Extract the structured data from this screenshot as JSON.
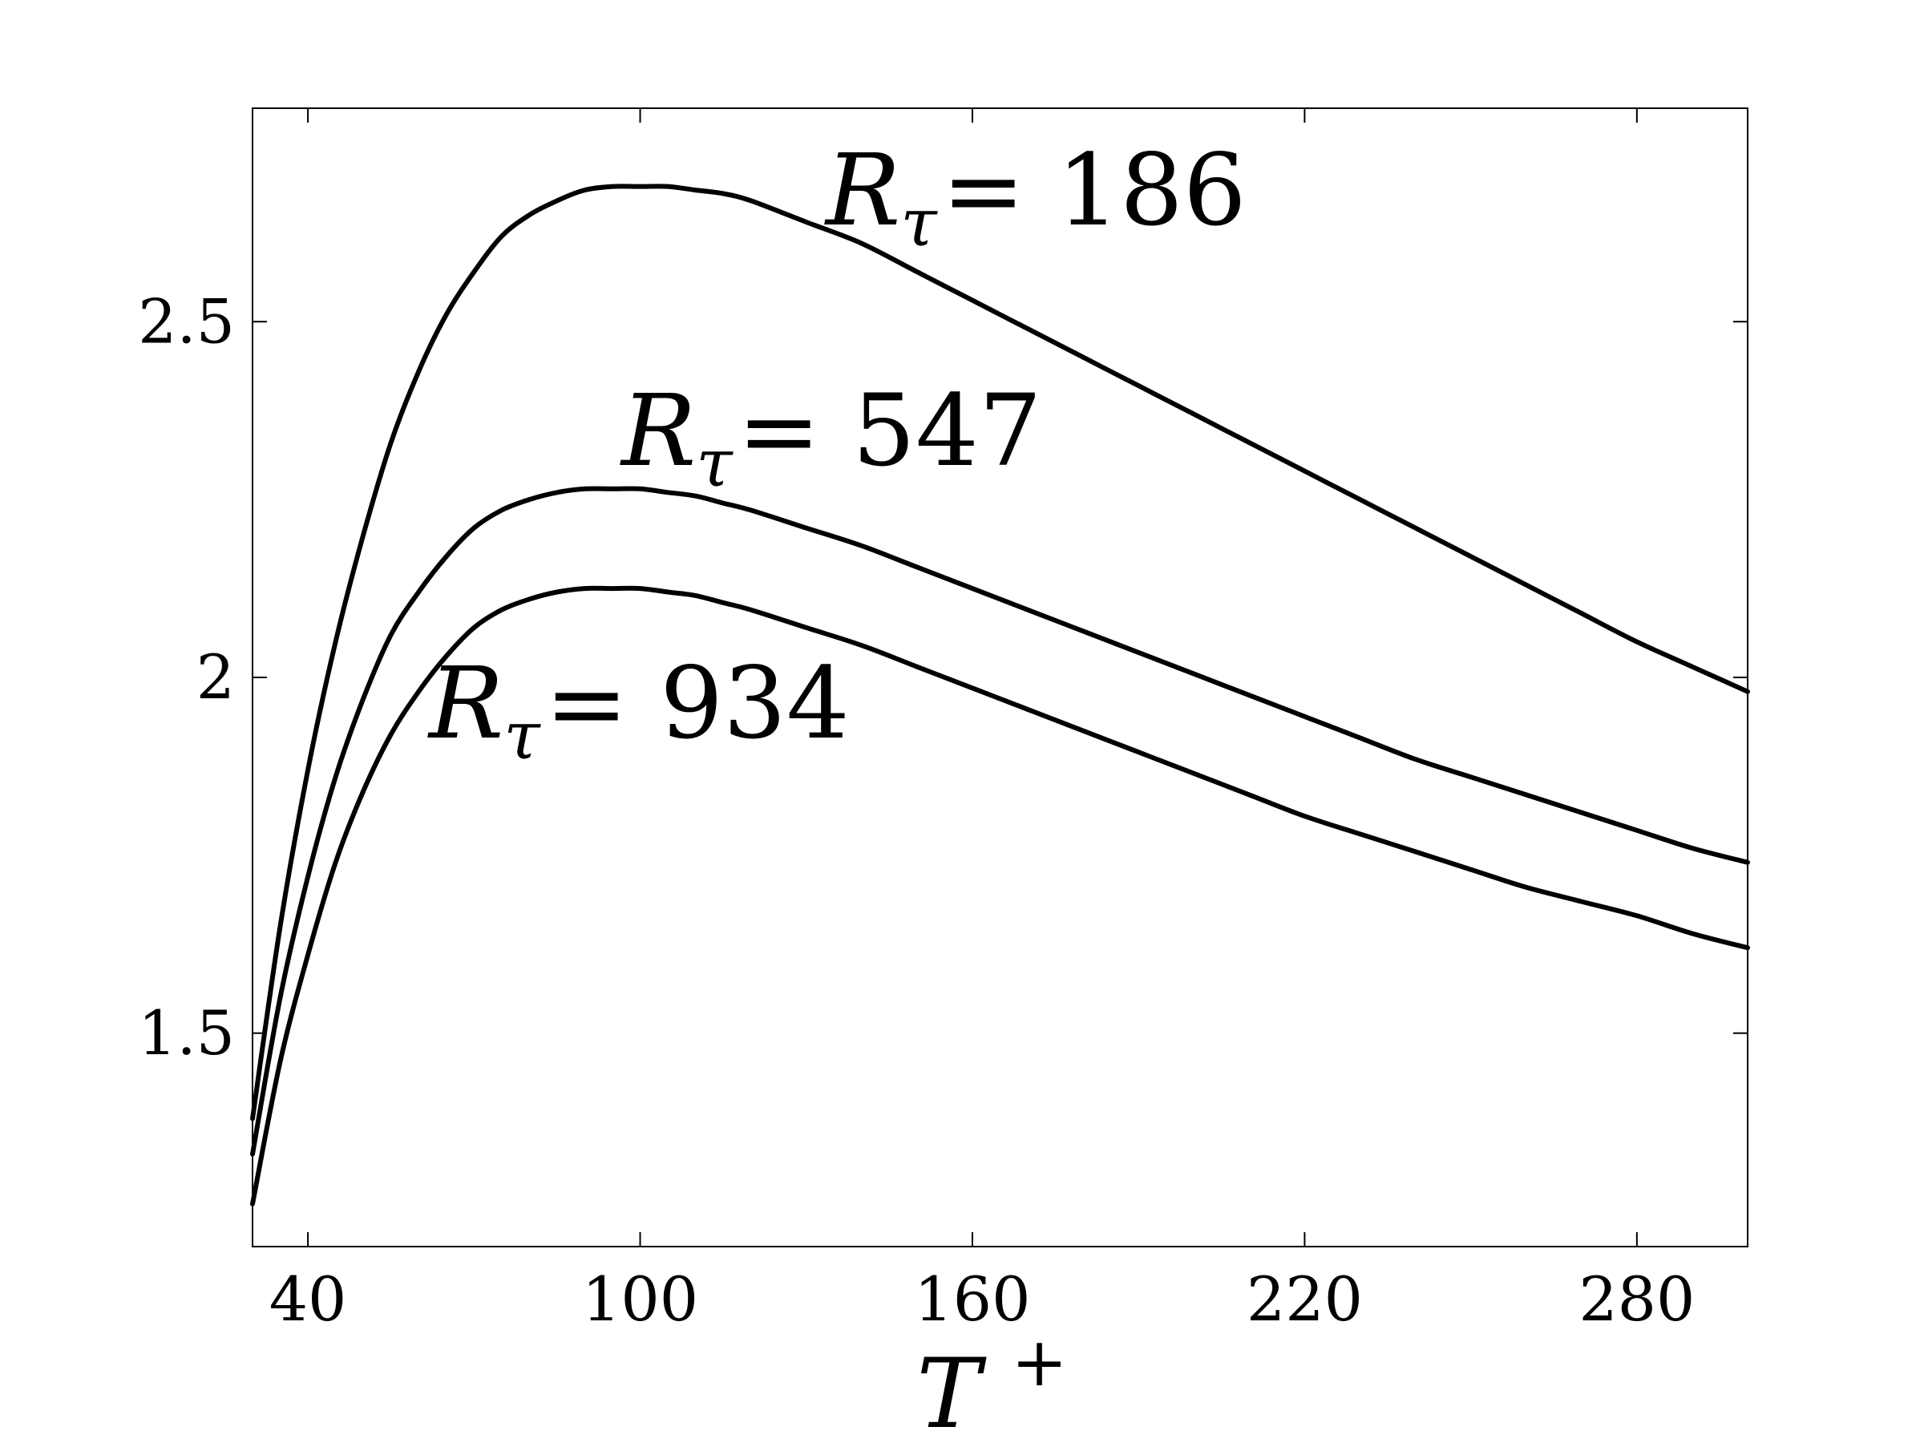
{
  "chart_data": {
    "type": "line",
    "xlabel_base": "T",
    "xlabel_sup": "+",
    "ylabel": "",
    "xlim": [
      30,
      300
    ],
    "ylim": [
      1.2,
      2.8
    ],
    "xticks": [
      40,
      100,
      160,
      220,
      280
    ],
    "xtick_labels": [
      "40",
      "100",
      "160",
      "220",
      "280"
    ],
    "yticks": [
      1.5,
      2.0,
      2.5
    ],
    "ytick_labels": [
      "1.5",
      "2",
      "2.5"
    ],
    "grid": false,
    "series": [
      {
        "name_prefix": "R",
        "name_sub": "τ",
        "name_rest": "= 186",
        "x": [
          30,
          35,
          40,
          45,
          50,
          55,
          60,
          65,
          70,
          75,
          80,
          85,
          90,
          95,
          100,
          105,
          110,
          115,
          120,
          130,
          140,
          150,
          160,
          170,
          180,
          190,
          200,
          210,
          220,
          230,
          240,
          250,
          260,
          270,
          280,
          290,
          300
        ],
        "y": [
          1.38,
          1.65,
          1.87,
          2.05,
          2.2,
          2.33,
          2.43,
          2.51,
          2.57,
          2.62,
          2.65,
          2.67,
          2.685,
          2.69,
          2.69,
          2.69,
          2.685,
          2.68,
          2.67,
          2.64,
          2.61,
          2.57,
          2.53,
          2.49,
          2.45,
          2.41,
          2.37,
          2.33,
          2.29,
          2.25,
          2.21,
          2.17,
          2.13,
          2.09,
          2.05,
          2.015,
          1.98
        ]
      },
      {
        "name_prefix": "R",
        "name_sub": "τ",
        "name_rest": "= 547",
        "x": [
          30,
          35,
          40,
          45,
          50,
          55,
          60,
          65,
          70,
          75,
          80,
          85,
          90,
          95,
          100,
          105,
          110,
          115,
          120,
          130,
          140,
          150,
          160,
          170,
          180,
          190,
          200,
          210,
          220,
          230,
          240,
          250,
          260,
          270,
          280,
          290,
          300
        ],
        "y": [
          1.33,
          1.55,
          1.72,
          1.86,
          1.97,
          2.06,
          2.12,
          2.17,
          2.21,
          2.235,
          2.25,
          2.26,
          2.265,
          2.265,
          2.265,
          2.26,
          2.255,
          2.245,
          2.235,
          2.21,
          2.185,
          2.155,
          2.125,
          2.095,
          2.065,
          2.035,
          2.005,
          1.975,
          1.945,
          1.915,
          1.885,
          1.86,
          1.835,
          1.81,
          1.785,
          1.76,
          1.74
        ]
      },
      {
        "name_prefix": "R",
        "name_sub": "τ",
        "name_rest": "= 934",
        "x": [
          30,
          35,
          40,
          45,
          50,
          55,
          60,
          65,
          70,
          75,
          80,
          85,
          90,
          95,
          100,
          105,
          110,
          115,
          120,
          130,
          140,
          150,
          160,
          170,
          180,
          190,
          200,
          210,
          220,
          230,
          240,
          250,
          260,
          270,
          280,
          290,
          300
        ],
        "y": [
          1.26,
          1.46,
          1.61,
          1.74,
          1.84,
          1.92,
          1.98,
          2.03,
          2.07,
          2.095,
          2.11,
          2.12,
          2.125,
          2.125,
          2.125,
          2.12,
          2.115,
          2.105,
          2.095,
          2.07,
          2.045,
          2.015,
          1.985,
          1.955,
          1.925,
          1.895,
          1.865,
          1.835,
          1.805,
          1.78,
          1.755,
          1.73,
          1.705,
          1.685,
          1.665,
          1.64,
          1.62
        ]
      }
    ]
  }
}
